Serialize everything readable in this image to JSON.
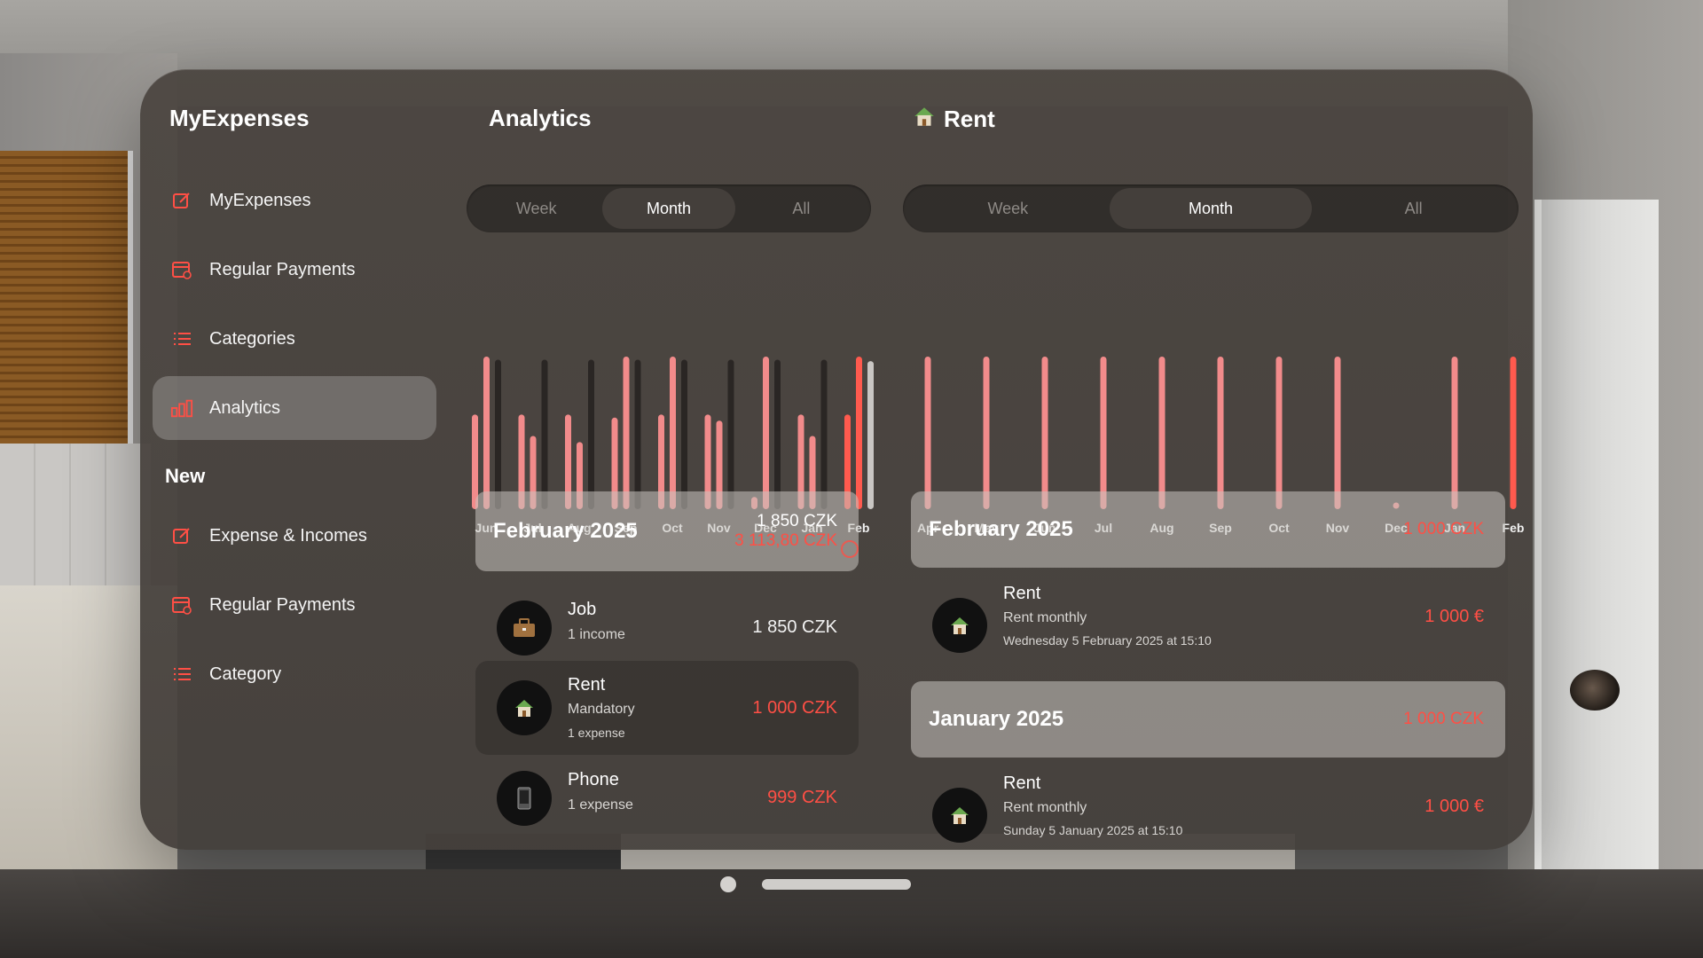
{
  "sidebar": {
    "app_title": "MyExpenses",
    "items": [
      {
        "label": "MyExpenses",
        "icon": "edit-icon"
      },
      {
        "label": "Regular Payments",
        "icon": "calendar-repeat-icon"
      },
      {
        "label": "Categories",
        "icon": "list-icon"
      },
      {
        "label": "Analytics",
        "icon": "bar-chart-icon",
        "active": true
      }
    ],
    "new_section": {
      "title": "New",
      "items": [
        {
          "label": "Expense & Incomes",
          "icon": "edit-icon"
        },
        {
          "label": "Regular Payments",
          "icon": "calendar-repeat-icon"
        },
        {
          "label": "Category",
          "icon": "list-icon"
        }
      ]
    }
  },
  "analytics": {
    "title": "Analytics",
    "segments": [
      "Week",
      "Month",
      "All"
    ],
    "selected_segment": "Month",
    "summary": {
      "month": "February 2025",
      "income": "1 850 CZK",
      "expense": "3 113,80 CZK"
    },
    "rows": [
      {
        "title": "Job",
        "subtitle": "1 income",
        "amount": "1 850 CZK",
        "icon": "briefcase-icon",
        "type": "income"
      },
      {
        "title": "Rent",
        "subtitle": "Mandatory",
        "subtitle2": "1 expense",
        "amount": "1 000 CZK",
        "icon": "house-icon",
        "type": "expense"
      },
      {
        "title": "Phone",
        "subtitle": "1 expense",
        "amount": "999 CZK",
        "icon": "phone-icon",
        "type": "expense"
      }
    ]
  },
  "rent": {
    "title": "Rent",
    "segments": [
      "Week",
      "Month",
      "All"
    ],
    "selected_segment": "Month",
    "groups": [
      {
        "month": "February 2025",
        "total": "1 000 CZK",
        "item": {
          "title": "Rent",
          "subtitle": "Rent monthly",
          "date": "Wednesday 5 February 2025 at 15:10",
          "amount": "1 000 €"
        }
      },
      {
        "month": "January 2025",
        "total": "1 000 CZK",
        "item": {
          "title": "Rent",
          "subtitle": "Rent monthly",
          "date": "Sunday 5 January 2025 at 15:10",
          "amount": "1 000 €"
        }
      }
    ]
  },
  "colors": {
    "accent_red": "#ff4f45",
    "bar_pink": "#f28b8b",
    "bar_dark": "#2a2624",
    "bar_highlight": "#ff5a4e"
  },
  "chart_data": [
    {
      "type": "bar",
      "categories": [
        "Jun",
        "Jul",
        "Aug",
        "Sep",
        "Oct",
        "Nov",
        "Dec",
        "Jan",
        "Feb"
      ],
      "series": [
        {
          "values": [
            0.62,
            0.62,
            0.62,
            0.6,
            0.62,
            0.62,
            0.08,
            0.62,
            0.62
          ]
        },
        {
          "values": [
            1.0,
            0.48,
            0.44,
            1.0,
            1.0,
            0.58,
            1.0,
            0.48,
            1.0
          ]
        },
        {
          "values": [
            0.98,
            0.98,
            0.98,
            0.98,
            0.98,
            0.98,
            0.98,
            0.98,
            0.97
          ]
        }
      ],
      "ylim": [
        0,
        1
      ]
    },
    {
      "type": "bar",
      "categories": [
        "Apr",
        "May",
        "Jun",
        "Jul",
        "Aug",
        "Sep",
        "Oct",
        "Nov",
        "Dec",
        "Jan",
        "Feb"
      ],
      "values": [
        1,
        1,
        1,
        1,
        1,
        1,
        1,
        1,
        0,
        1,
        1
      ],
      "ylim": [
        0,
        1
      ]
    }
  ]
}
